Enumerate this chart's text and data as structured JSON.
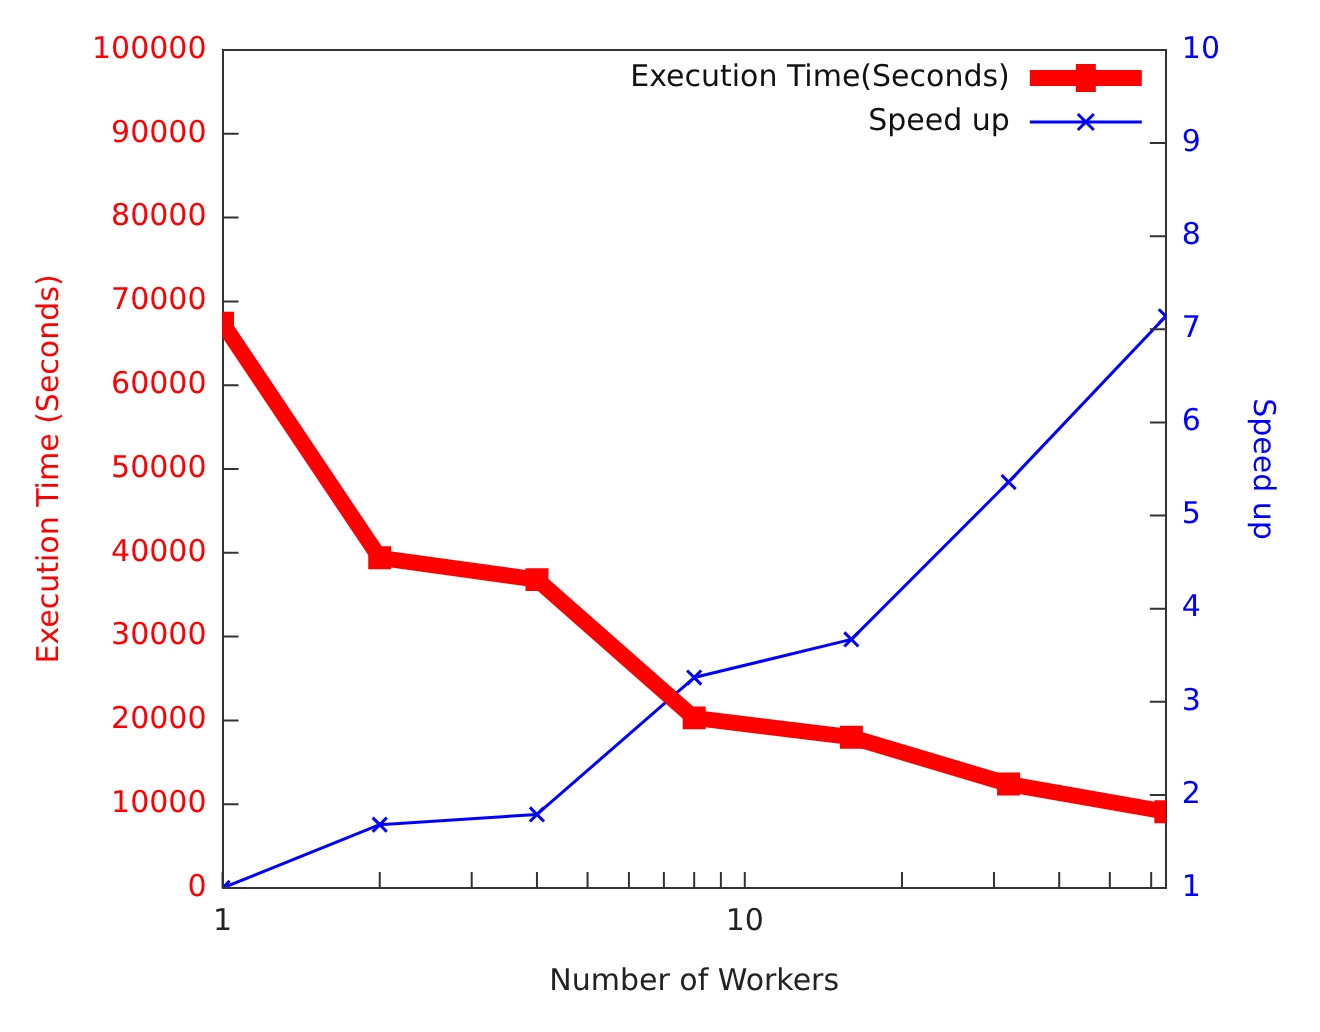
{
  "chart_data": {
    "type": "line",
    "xlabel": "Number of Workers",
    "ylabel": "Execution Time (Seconds)",
    "y2label": "Speed up",
    "log": "x",
    "x": [
      1,
      2,
      4,
      8,
      16,
      32,
      64
    ],
    "series": [
      {
        "name": "Execution Time(Seconds)",
        "color": "#ff0000",
        "values": [
          67400,
          39400,
          36800,
          20300,
          18000,
          12400,
          9100
        ],
        "marker": "square"
      },
      {
        "name": "Speed up",
        "color": "#0000ff",
        "axis": "y2",
        "values": [
          1,
          1.68,
          1.79,
          3.26,
          3.67,
          5.36,
          7.14
        ],
        "marker": "cross"
      }
    ],
    "xlim": [
      1,
      64
    ],
    "xticks": [
      1,
      {
        "value": 2,
        "label": null
      },
      {
        "value": 3,
        "label": null
      },
      {
        "value": 4,
        "label": null
      },
      {
        "value": 5,
        "label": null
      },
      {
        "value": 6,
        "label": null
      },
      {
        "value": 7,
        "label": null
      },
      {
        "value": 8,
        "label": null
      },
      {
        "value": 9,
        "label": null
      },
      10,
      {
        "value": 20,
        "label": null
      },
      {
        "value": 30,
        "label": null
      },
      {
        "value": 40,
        "label": null
      },
      {
        "value": 50,
        "label": null
      },
      {
        "value": 60,
        "label": null
      }
    ],
    "ylim": [
      0,
      100000
    ],
    "yticks": [
      0,
      10000,
      20000,
      30000,
      40000,
      50000,
      60000,
      70000,
      80000,
      90000,
      100000
    ],
    "y2lim": [
      1,
      10
    ],
    "y2ticks": [
      1,
      2,
      3,
      4,
      5,
      6,
      7,
      8,
      9,
      10
    ],
    "grid": false,
    "legend": "top right"
  }
}
